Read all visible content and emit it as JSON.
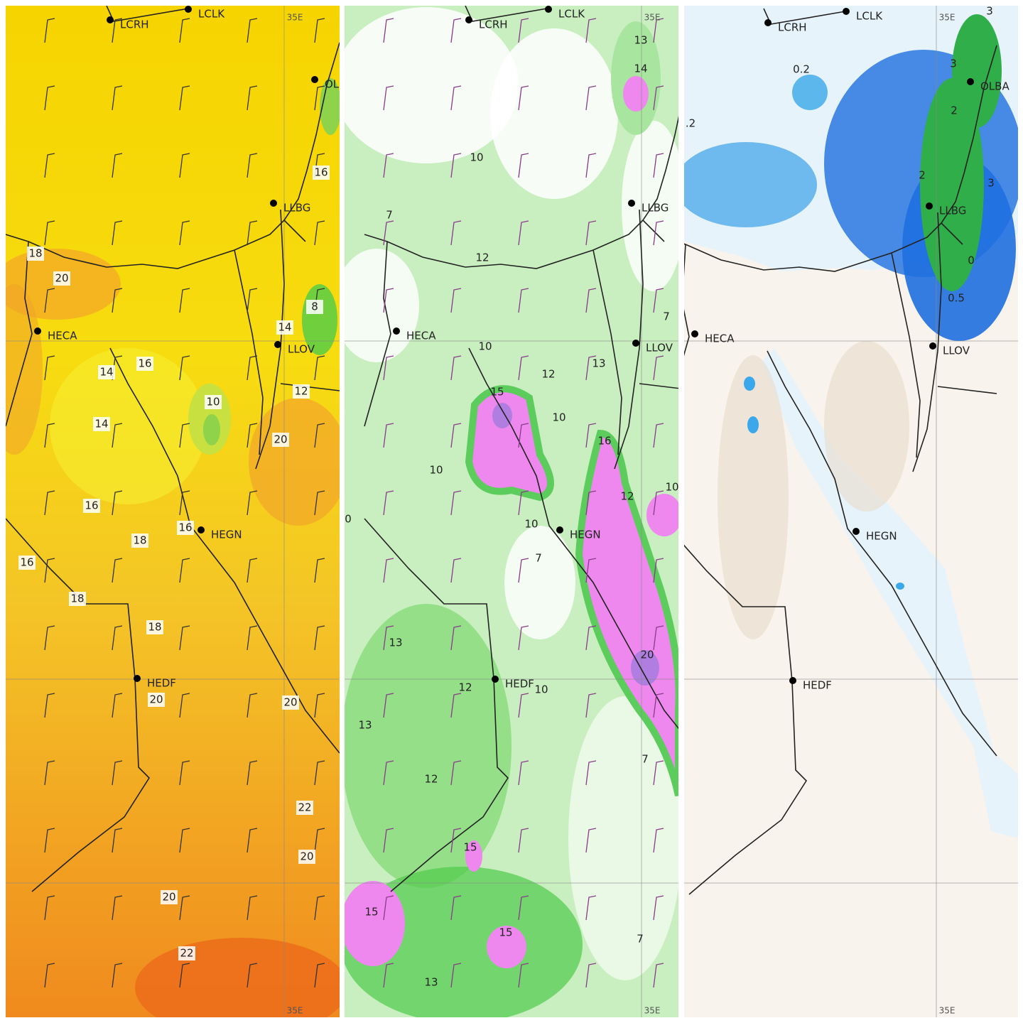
{
  "panels": [
    {
      "meridian_top": "35E",
      "meridian_bottom": "35E",
      "stations": [
        "LCRH",
        "LCLK",
        "OL",
        "LLBG",
        "HECA",
        "LLOV",
        "HEGN",
        "HEDF"
      ],
      "labels": [
        18,
        20,
        16,
        8,
        14,
        14,
        16,
        10,
        12,
        14,
        20,
        16,
        16,
        18,
        16,
        18,
        18,
        20,
        20,
        22,
        20,
        20,
        22
      ]
    },
    {
      "meridian_top": "35E",
      "meridian_bottom": "35E",
      "stations": [
        "LCRH",
        "LCLK",
        "LLBG",
        "HECA",
        "LLOV",
        "HEGN",
        "HEDF"
      ],
      "labels": [
        13,
        14,
        10,
        7,
        12,
        7,
        10,
        12,
        13,
        15,
        10,
        16,
        10,
        12,
        10,
        0,
        10,
        7,
        20,
        13,
        12,
        10,
        13,
        12,
        7,
        15,
        15,
        15,
        7,
        13
      ]
    },
    {
      "meridian_top": "35E",
      "meridian_bottom": "35E",
      "stations": [
        "LCRH",
        "LCLK",
        "OLBA",
        "LLBG",
        "HECA",
        "LLOV",
        "HEGN",
        "HEDF"
      ],
      "labels": [
        0.2,
        ".2",
        3,
        3,
        2,
        2,
        3,
        0,
        0.5
      ]
    }
  ]
}
